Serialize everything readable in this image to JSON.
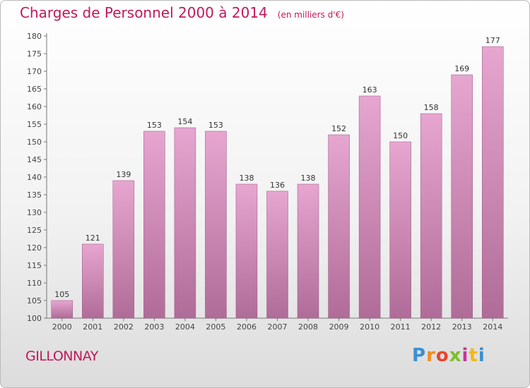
{
  "header": {
    "title": "Charges de Personnel 2000 à 2014",
    "unit": "(en milliers d'€)"
  },
  "footer": {
    "commune": "GILLONNAY",
    "logo_letters": [
      "P",
      "r",
      "o",
      "x",
      "i",
      "t",
      "i"
    ],
    "logo_colors": [
      "#3b8fd3",
      "#f28c1e",
      "#e9462d",
      "#7bbf2a",
      "#c7349a",
      "#f5b80f",
      "#3b8fd3"
    ]
  },
  "colors": {
    "bar_top": "#e6a6d0",
    "bar_bottom": "#b06c98",
    "title": "#c2185b"
  },
  "chart_data": {
    "type": "bar",
    "title": "Charges de Personnel 2000 à 2014",
    "categories": [
      "2000",
      "2001",
      "2002",
      "2003",
      "2004",
      "2005",
      "2006",
      "2007",
      "2008",
      "2009",
      "2010",
      "2011",
      "2012",
      "2013",
      "2014"
    ],
    "values": [
      105,
      121,
      139,
      153,
      154,
      153,
      138,
      136,
      138,
      152,
      163,
      150,
      158,
      169,
      177
    ],
    "ylim": [
      100,
      180
    ],
    "yticks": [
      100,
      105,
      110,
      115,
      120,
      125,
      130,
      135,
      140,
      145,
      150,
      155,
      160,
      165,
      170,
      175,
      180
    ],
    "grid": false,
    "legend": "none"
  }
}
